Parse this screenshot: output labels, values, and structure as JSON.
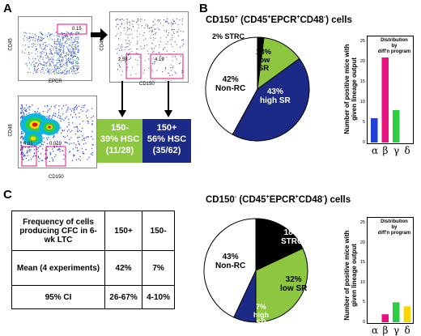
{
  "panel_a": {
    "letter": "A",
    "plot1": {
      "xlabel": "EPCR",
      "ylabel": "CD45",
      "gate": "0.15"
    },
    "plot2": {
      "xlabel": "CD150",
      "ylabel": "CD48",
      "gate_left": "2.58",
      "gate_right": "4.19"
    },
    "plot3": {
      "xlabel": "CD150",
      "ylabel": "CD48",
      "gate_left": "4.01",
      "gate_right": "0.019"
    },
    "box_minus": {
      "line1": "150-",
      "line2": "39% HSC",
      "line3": "(11/28)",
      "color": "#8dc63f"
    },
    "box_plus": {
      "line1": "150+",
      "line2": "56% HSC",
      "line3": "(35/62)",
      "color": "#1b2a87"
    }
  },
  "panel_b": {
    "letter": "B",
    "title_prefix": "CD150",
    "title_sup1": "+",
    "title_mid": " (CD45",
    "title_sup2": "+",
    "title_mid2": "EPCR",
    "title_sup3": "+",
    "title_mid3": "CD48",
    "title_sup4": "-",
    "title_end": ")  cells",
    "pie_labels": {
      "strc": "2% STRC",
      "low_sr_pct": "13%",
      "low_sr": "low",
      "low_sr2": "SR",
      "high_sr_pct": "43%",
      "high_sr": "high SR",
      "nonrc_pct": "42%",
      "nonrc": "Non-RC"
    },
    "bar_note_1": "Distribution by",
    "bar_note_2": "diff'n program",
    "ylabel_1": "Number of positive mice with",
    "ylabel_2": "given lineage output",
    "ticks": [
      "25",
      "20",
      "15",
      "10",
      "5",
      "0"
    ],
    "greek": [
      "α",
      "β",
      "γ",
      "δ"
    ]
  },
  "panel_c": {
    "letter": "C",
    "table": {
      "header": [
        "Frequency of cells producing CFC in 6-wk LTC",
        "150+",
        "150-"
      ],
      "rows": [
        [
          "Mean (4 experiments)",
          "42%",
          "7%"
        ],
        [
          "95% CI",
          "26-67%",
          "4-10%"
        ]
      ]
    },
    "title_prefix": "CD150",
    "title_sup1": "-",
    "title_mid": " (CD45",
    "title_sup2": "+",
    "title_mid2": "EPCR",
    "title_sup3": "+",
    "title_mid3": "CD48",
    "title_sup4": "-",
    "title_end": ")  cells",
    "pie_labels": {
      "strc_pct": "18%",
      "strc": "STRC",
      "low_sr_pct": "32%",
      "low_sr": "low SR",
      "high_sr_pct": "7%",
      "high_sr": "high",
      "high_sr2": "SR",
      "nonrc_pct": "43%",
      "nonrc": "Non-RC"
    },
    "bar_note_1": "Distribution by",
    "bar_note_2": "diff'n program",
    "ylabel_1": "Number of positive mice with",
    "ylabel_2": "given lineage output",
    "ticks": [
      "25",
      "20",
      "15",
      "10",
      "5",
      "0"
    ],
    "greek": [
      "α",
      "β",
      "γ",
      "δ"
    ]
  },
  "chart_data": [
    {
      "type": "pie",
      "title": "CD150+ (CD45+EPCR+CD48-) cells",
      "categories": [
        "STRC",
        "low SR",
        "high SR",
        "Non-RC"
      ],
      "values": [
        2,
        13,
        43,
        42
      ],
      "colors": [
        "#000000",
        "#8dc63f",
        "#1b2a87",
        "#ffffff"
      ]
    },
    {
      "type": "bar",
      "title": "",
      "categories": [
        "α",
        "β",
        "γ",
        "δ"
      ],
      "values": [
        6,
        21,
        8,
        0
      ],
      "colors": [
        "#1f3fd6",
        "#e8117f",
        "#2ecc40",
        "#ffd400"
      ],
      "ylim": [
        0,
        25
      ],
      "ylabel": "Number of positive mice with given lineage output"
    },
    {
      "type": "pie",
      "title": "CD150- (CD45+EPCR+CD48-) cells",
      "categories": [
        "STRC",
        "low SR",
        "high SR",
        "Non-RC"
      ],
      "values": [
        18,
        32,
        7,
        43
      ],
      "colors": [
        "#000000",
        "#8dc63f",
        "#1b2a87",
        "#ffffff"
      ]
    },
    {
      "type": "bar",
      "title": "",
      "categories": [
        "α",
        "β",
        "γ",
        "δ"
      ],
      "values": [
        0,
        2,
        5,
        4
      ],
      "colors": [
        "#1f3fd6",
        "#e8117f",
        "#2ecc40",
        "#ffd400"
      ],
      "ylim": [
        0,
        25
      ],
      "ylabel": "Number of positive mice with given lineage output"
    }
  ]
}
